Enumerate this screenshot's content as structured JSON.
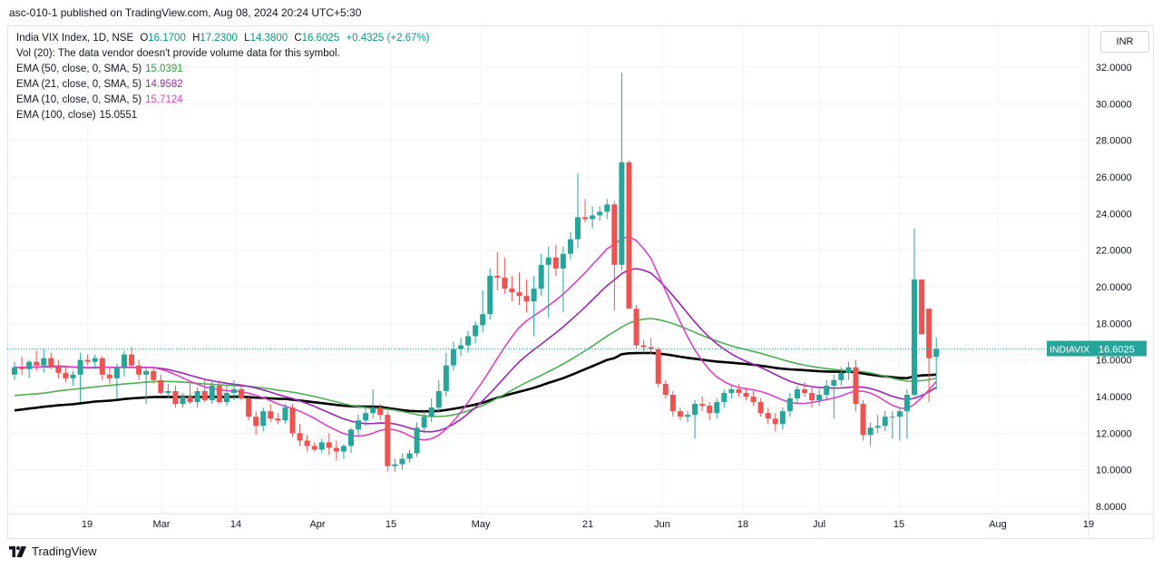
{
  "header": {
    "published": "asc-010-1 published on TradingView.com, Aug 08, 2024 20:24 UTC+5:30"
  },
  "legend": {
    "symbol": "India VIX Index, 1D, NSE",
    "o_label": "O",
    "o": "16.1700",
    "h_label": "H",
    "h": "17.2300",
    "l_label": "L",
    "l": "14.3800",
    "c_label": "C",
    "c": "16.6025",
    "change": "+0.4325 (+2.67%)",
    "vol": "Vol (20): The data vendor doesn't provide volume data for this symbol.",
    "ema50_label": "EMA (50, close, 0, SMA, 5)",
    "ema50_value": "15.0391",
    "ema21_label": "EMA (21, close, 0, SMA, 5)",
    "ema21_value": "14.9582",
    "ema10_label": "EMA (10, close, 0, SMA, 5)",
    "ema10_value": "15.7124",
    "ema100_label": "EMA (100, close)",
    "ema100_value": "15.0551"
  },
  "currency": "INR",
  "price_tag": {
    "symbol": "INDIAVIX",
    "value": "16.6025"
  },
  "footer": {
    "brand": "TradingView"
  },
  "colors": {
    "up": "#26a69a",
    "down": "#ef5350",
    "ema50": "#4caf50",
    "ema21": "#9c27b0",
    "ema10": "#e040c8",
    "ema100": "#000000"
  },
  "chart_data": {
    "type": "candlestick",
    "y_range": [
      7.5,
      33.0
    ],
    "y_ticks": [
      "8.0000",
      "10.0000",
      "12.0000",
      "14.0000",
      "16.0000",
      "18.0000",
      "20.0000",
      "22.0000",
      "24.0000",
      "26.0000",
      "28.0000",
      "30.0000",
      "32.0000"
    ],
    "x_ticks": [
      "19",
      "Mar",
      "14",
      "Apr",
      "15",
      "May",
      "21",
      "Jun",
      "18",
      "Jul",
      "15",
      "Aug",
      "19"
    ],
    "last_close": 16.6025,
    "candles": [
      {
        "o": 15.2,
        "h": 15.9,
        "l": 14.9,
        "c": 15.6
      },
      {
        "o": 15.6,
        "h": 16.2,
        "l": 15.2,
        "c": 15.5
      },
      {
        "o": 15.5,
        "h": 16.0,
        "l": 15.0,
        "c": 15.9
      },
      {
        "o": 15.9,
        "h": 16.5,
        "l": 15.4,
        "c": 15.7
      },
      {
        "o": 15.7,
        "h": 16.6,
        "l": 15.3,
        "c": 16.1
      },
      {
        "o": 16.1,
        "h": 16.4,
        "l": 15.5,
        "c": 15.6
      },
      {
        "o": 15.6,
        "h": 16.0,
        "l": 15.0,
        "c": 15.3
      },
      {
        "o": 15.3,
        "h": 15.7,
        "l": 14.8,
        "c": 15.0
      },
      {
        "o": 15.0,
        "h": 15.4,
        "l": 14.6,
        "c": 15.2
      },
      {
        "o": 15.2,
        "h": 16.4,
        "l": 13.7,
        "c": 16.0
      },
      {
        "o": 16.0,
        "h": 16.3,
        "l": 15.7,
        "c": 15.9
      },
      {
        "o": 15.9,
        "h": 16.3,
        "l": 15.5,
        "c": 16.1
      },
      {
        "o": 16.1,
        "h": 16.2,
        "l": 14.9,
        "c": 15.2
      },
      {
        "o": 15.2,
        "h": 15.6,
        "l": 14.7,
        "c": 15.0
      },
      {
        "o": 15.0,
        "h": 15.8,
        "l": 13.9,
        "c": 15.6
      },
      {
        "o": 15.6,
        "h": 16.5,
        "l": 15.1,
        "c": 16.3
      },
      {
        "o": 16.3,
        "h": 16.7,
        "l": 15.6,
        "c": 15.7
      },
      {
        "o": 15.7,
        "h": 16.0,
        "l": 14.9,
        "c": 15.2
      },
      {
        "o": 15.2,
        "h": 15.6,
        "l": 13.6,
        "c": 15.4
      },
      {
        "o": 15.4,
        "h": 15.6,
        "l": 14.7,
        "c": 14.9
      },
      {
        "o": 14.9,
        "h": 15.2,
        "l": 14.1,
        "c": 14.2
      },
      {
        "o": 14.2,
        "h": 14.7,
        "l": 13.9,
        "c": 14.3
      },
      {
        "o": 14.3,
        "h": 14.6,
        "l": 13.4,
        "c": 13.6
      },
      {
        "o": 13.6,
        "h": 14.2,
        "l": 13.4,
        "c": 14.0
      },
      {
        "o": 14.0,
        "h": 14.7,
        "l": 13.6,
        "c": 13.7
      },
      {
        "o": 13.7,
        "h": 14.5,
        "l": 13.4,
        "c": 14.3
      },
      {
        "o": 14.3,
        "h": 15.0,
        "l": 13.7,
        "c": 13.8
      },
      {
        "o": 13.8,
        "h": 14.9,
        "l": 13.6,
        "c": 14.6
      },
      {
        "o": 14.6,
        "h": 14.9,
        "l": 13.6,
        "c": 13.7
      },
      {
        "o": 13.7,
        "h": 14.6,
        "l": 13.5,
        "c": 14.2
      },
      {
        "o": 14.2,
        "h": 14.9,
        "l": 13.8,
        "c": 14.4
      },
      {
        "o": 14.4,
        "h": 14.6,
        "l": 13.8,
        "c": 13.9
      },
      {
        "o": 13.9,
        "h": 14.0,
        "l": 12.7,
        "c": 12.9
      },
      {
        "o": 12.9,
        "h": 13.2,
        "l": 11.9,
        "c": 12.4
      },
      {
        "o": 12.4,
        "h": 13.4,
        "l": 12.1,
        "c": 13.2
      },
      {
        "o": 13.2,
        "h": 13.6,
        "l": 12.6,
        "c": 12.8
      },
      {
        "o": 12.8,
        "h": 13.1,
        "l": 12.5,
        "c": 12.7
      },
      {
        "o": 12.7,
        "h": 13.6,
        "l": 12.5,
        "c": 13.4
      },
      {
        "o": 13.4,
        "h": 13.6,
        "l": 11.8,
        "c": 12.0
      },
      {
        "o": 12.0,
        "h": 12.5,
        "l": 11.3,
        "c": 11.6
      },
      {
        "o": 11.6,
        "h": 11.9,
        "l": 11.0,
        "c": 11.3
      },
      {
        "o": 11.3,
        "h": 11.5,
        "l": 11.0,
        "c": 11.1
      },
      {
        "o": 11.1,
        "h": 11.7,
        "l": 10.9,
        "c": 11.5
      },
      {
        "o": 11.5,
        "h": 12.0,
        "l": 10.8,
        "c": 11.2
      },
      {
        "o": 11.2,
        "h": 11.6,
        "l": 10.5,
        "c": 11.0
      },
      {
        "o": 11.0,
        "h": 11.4,
        "l": 10.6,
        "c": 11.3
      },
      {
        "o": 11.3,
        "h": 12.3,
        "l": 10.9,
        "c": 12.2
      },
      {
        "o": 12.2,
        "h": 13.0,
        "l": 11.9,
        "c": 12.7
      },
      {
        "o": 12.7,
        "h": 13.4,
        "l": 12.4,
        "c": 13.1
      },
      {
        "o": 13.1,
        "h": 14.4,
        "l": 12.8,
        "c": 13.4
      },
      {
        "o": 13.4,
        "h": 13.6,
        "l": 12.7,
        "c": 13.0
      },
      {
        "o": 13.0,
        "h": 13.2,
        "l": 9.9,
        "c": 10.2
      },
      {
        "o": 10.2,
        "h": 10.6,
        "l": 9.9,
        "c": 10.3
      },
      {
        "o": 10.3,
        "h": 10.9,
        "l": 10.0,
        "c": 10.6
      },
      {
        "o": 10.6,
        "h": 11.1,
        "l": 10.4,
        "c": 10.9
      },
      {
        "o": 10.9,
        "h": 12.6,
        "l": 10.7,
        "c": 12.3
      },
      {
        "o": 12.3,
        "h": 13.2,
        "l": 12.0,
        "c": 12.9
      },
      {
        "o": 12.9,
        "h": 13.9,
        "l": 12.6,
        "c": 13.4
      },
      {
        "o": 13.4,
        "h": 14.9,
        "l": 13.1,
        "c": 14.3
      },
      {
        "o": 14.3,
        "h": 16.4,
        "l": 14.0,
        "c": 15.7
      },
      {
        "o": 15.7,
        "h": 17.0,
        "l": 15.4,
        "c": 16.6
      },
      {
        "o": 16.6,
        "h": 17.2,
        "l": 16.2,
        "c": 16.8
      },
      {
        "o": 16.8,
        "h": 17.6,
        "l": 16.4,
        "c": 17.3
      },
      {
        "o": 17.3,
        "h": 18.1,
        "l": 16.9,
        "c": 17.9
      },
      {
        "o": 17.9,
        "h": 19.8,
        "l": 17.5,
        "c": 18.5
      },
      {
        "o": 18.5,
        "h": 21.0,
        "l": 18.2,
        "c": 20.6
      },
      {
        "o": 20.6,
        "h": 21.9,
        "l": 19.8,
        "c": 20.5
      },
      {
        "o": 20.5,
        "h": 21.6,
        "l": 19.6,
        "c": 19.9
      },
      {
        "o": 19.9,
        "h": 20.6,
        "l": 19.2,
        "c": 19.7
      },
      {
        "o": 19.7,
        "h": 20.8,
        "l": 19.0,
        "c": 19.5
      },
      {
        "o": 19.5,
        "h": 20.4,
        "l": 18.6,
        "c": 19.2
      },
      {
        "o": 19.2,
        "h": 20.6,
        "l": 17.3,
        "c": 19.9
      },
      {
        "o": 19.9,
        "h": 21.8,
        "l": 19.5,
        "c": 21.2
      },
      {
        "o": 21.2,
        "h": 22.2,
        "l": 18.3,
        "c": 21.6
      },
      {
        "o": 21.6,
        "h": 22.3,
        "l": 20.6,
        "c": 21.0
      },
      {
        "o": 21.0,
        "h": 22.2,
        "l": 18.6,
        "c": 21.8
      },
      {
        "o": 21.8,
        "h": 23.0,
        "l": 21.5,
        "c": 22.6
      },
      {
        "o": 22.6,
        "h": 26.2,
        "l": 22.1,
        "c": 23.8
      },
      {
        "o": 23.8,
        "h": 24.8,
        "l": 23.5,
        "c": 23.7
      },
      {
        "o": 23.7,
        "h": 24.4,
        "l": 23.2,
        "c": 23.9
      },
      {
        "o": 23.9,
        "h": 24.4,
        "l": 23.6,
        "c": 24.1
      },
      {
        "o": 24.1,
        "h": 24.8,
        "l": 23.7,
        "c": 24.5
      },
      {
        "o": 24.5,
        "h": 24.7,
        "l": 18.7,
        "c": 21.2
      },
      {
        "o": 21.2,
        "h": 31.7,
        "l": 20.9,
        "c": 26.8
      },
      {
        "o": 26.8,
        "h": 26.9,
        "l": 18.9,
        "c": 18.8
      },
      {
        "o": 18.8,
        "h": 19.0,
        "l": 16.6,
        "c": 16.8
      },
      {
        "o": 16.8,
        "h": 17.1,
        "l": 16.4,
        "c": 16.7
      },
      {
        "o": 16.7,
        "h": 17.2,
        "l": 16.3,
        "c": 16.6
      },
      {
        "o": 16.6,
        "h": 16.7,
        "l": 14.5,
        "c": 14.7
      },
      {
        "o": 14.7,
        "h": 14.9,
        "l": 13.9,
        "c": 14.1
      },
      {
        "o": 14.1,
        "h": 14.3,
        "l": 12.9,
        "c": 13.2
      },
      {
        "o": 13.2,
        "h": 13.4,
        "l": 12.7,
        "c": 12.9
      },
      {
        "o": 12.9,
        "h": 13.2,
        "l": 12.6,
        "c": 13.0
      },
      {
        "o": 13.0,
        "h": 13.8,
        "l": 11.7,
        "c": 13.6
      },
      {
        "o": 13.6,
        "h": 14.0,
        "l": 13.2,
        "c": 13.5
      },
      {
        "o": 13.5,
        "h": 13.7,
        "l": 12.7,
        "c": 13.1
      },
      {
        "o": 13.1,
        "h": 13.9,
        "l": 12.8,
        "c": 13.7
      },
      {
        "o": 13.7,
        "h": 14.4,
        "l": 13.4,
        "c": 14.2
      },
      {
        "o": 14.2,
        "h": 14.6,
        "l": 13.9,
        "c": 14.4
      },
      {
        "o": 14.4,
        "h": 14.7,
        "l": 14.0,
        "c": 14.2
      },
      {
        "o": 14.2,
        "h": 14.5,
        "l": 13.8,
        "c": 14.0
      },
      {
        "o": 14.0,
        "h": 14.3,
        "l": 13.5,
        "c": 13.7
      },
      {
        "o": 13.7,
        "h": 13.9,
        "l": 12.9,
        "c": 13.1
      },
      {
        "o": 13.1,
        "h": 13.4,
        "l": 12.5,
        "c": 12.8
      },
      {
        "o": 12.8,
        "h": 13.1,
        "l": 12.1,
        "c": 12.5
      },
      {
        "o": 12.5,
        "h": 13.4,
        "l": 12.2,
        "c": 13.2
      },
      {
        "o": 13.2,
        "h": 14.2,
        "l": 12.9,
        "c": 13.9
      },
      {
        "o": 13.9,
        "h": 14.6,
        "l": 13.6,
        "c": 14.4
      },
      {
        "o": 14.4,
        "h": 14.8,
        "l": 14.0,
        "c": 14.2
      },
      {
        "o": 14.2,
        "h": 14.5,
        "l": 13.4,
        "c": 13.8
      },
      {
        "o": 13.8,
        "h": 14.4,
        "l": 13.5,
        "c": 14.1
      },
      {
        "o": 14.1,
        "h": 14.9,
        "l": 13.8,
        "c": 14.6
      },
      {
        "o": 14.6,
        "h": 15.2,
        "l": 12.8,
        "c": 14.9
      },
      {
        "o": 14.9,
        "h": 15.6,
        "l": 14.6,
        "c": 15.3
      },
      {
        "o": 15.3,
        "h": 15.9,
        "l": 14.9,
        "c": 15.6
      },
      {
        "o": 15.6,
        "h": 16.0,
        "l": 13.2,
        "c": 13.6
      },
      {
        "o": 13.6,
        "h": 13.8,
        "l": 11.6,
        "c": 11.9
      },
      {
        "o": 11.9,
        "h": 12.6,
        "l": 11.3,
        "c": 12.3
      },
      {
        "o": 12.3,
        "h": 13.0,
        "l": 12.0,
        "c": 12.4
      },
      {
        "o": 12.4,
        "h": 13.2,
        "l": 12.1,
        "c": 12.9
      },
      {
        "o": 12.9,
        "h": 13.2,
        "l": 11.7,
        "c": 12.9
      },
      {
        "o": 12.9,
        "h": 13.4,
        "l": 11.6,
        "c": 13.2
      },
      {
        "o": 13.2,
        "h": 14.4,
        "l": 11.7,
        "c": 14.1
      },
      {
        "o": 14.1,
        "h": 23.2,
        "l": 14.0,
        "c": 20.4
      },
      {
        "o": 20.4,
        "h": 20.4,
        "l": 17.4,
        "c": 17.4
      },
      {
        "o": 18.8,
        "h": 18.8,
        "l": 13.7,
        "c": 16.1
      },
      {
        "o": 16.17,
        "h": 17.23,
        "l": 14.38,
        "c": 16.6025
      }
    ]
  }
}
